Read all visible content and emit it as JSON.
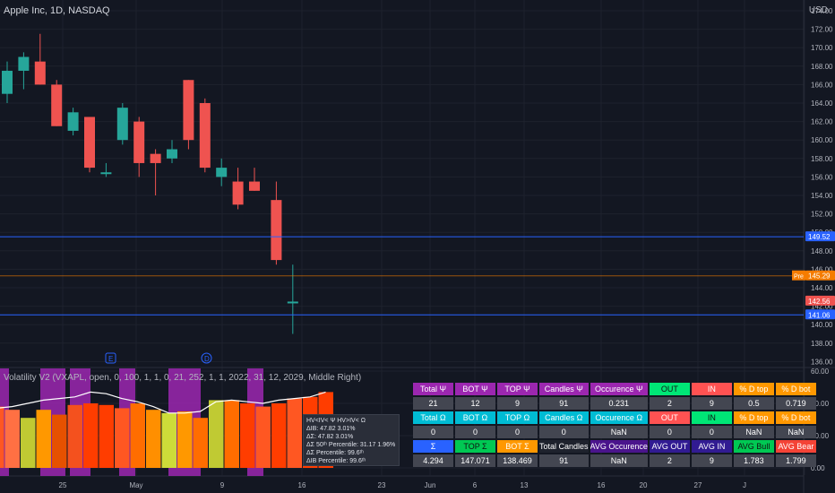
{
  "header": {
    "symbol_title": "Apple Inc, 1D, NASDAQ",
    "currency": "USD"
  },
  "price_axis": [
    "174.00",
    "172.00",
    "170.00",
    "168.00",
    "166.00",
    "164.00",
    "162.00",
    "160.00",
    "158.00",
    "156.00",
    "154.00",
    "152.00",
    "150.00",
    "148.00",
    "146.00",
    "144.00",
    "142.00",
    "140.00",
    "138.00",
    "136.00"
  ],
  "price_tags": {
    "line_high": "149.52",
    "pre_label": "Pre",
    "pre_price": "145.29",
    "last_price": "142.56",
    "line_low": "141.06"
  },
  "indicator_axis": [
    "60.00",
    "40.00",
    "20.00",
    "0.00"
  ],
  "time_axis": [
    "25",
    "May",
    "9",
    "16",
    "23",
    "Jun",
    "6",
    "13",
    "16",
    "20",
    "27",
    "J"
  ],
  "event_markers": [
    "E",
    "D"
  ],
  "indicator": {
    "title": "Volatility V2 (VXAPL, open, 0, 100, 1, 1, 0, 21, 252, 1, 1, 2022, 31, 12, 2029, Middle Right)"
  },
  "tooltip": [
    "HV<IV< Ψ  HV>IV< Ω",
    "ΔIB: 47.82  3.01%",
    "ΔΣ: 47.82  3.01%",
    "ΔΣ 50ᵗʰ Percentile: 31.17  1.96%",
    "ΔΣ Percentile: 99.6ᵗʰ",
    "ΔIB Percentile: 99.6ᵗʰ"
  ],
  "stats_table": {
    "rows": [
      [
        "Total Ψ",
        "BOT Ψ",
        "TOP Ψ",
        "Candles Ψ",
        "Occurence Ψ",
        "OUT",
        "IN",
        "% D top",
        "% D bot"
      ],
      [
        "21",
        "12",
        "9",
        "91",
        "0.231",
        "2",
        "9",
        "0.5",
        "0.719"
      ],
      [
        "Total Ω",
        "BOT Ω",
        "TOP Ω",
        "Candles Ω",
        "Occurence Ω",
        "OUT",
        "IN",
        "% D top",
        "% D bot"
      ],
      [
        "0",
        "0",
        "0",
        "0",
        "NaN",
        "0",
        "0",
        "NaN",
        "NaN"
      ],
      [
        "Σ",
        "TOP Σ",
        "BOT Σ",
        "Total Candles",
        "AVG Occurence",
        "AVG OUT",
        "AVG IN",
        "AVG Bull",
        "AVG Bear"
      ],
      [
        "4.294",
        "147.071",
        "138.469",
        "91",
        "NaN",
        "2",
        "9",
        "1.783",
        "1.799"
      ]
    ]
  },
  "chart_data": {
    "type": "candlestick",
    "title": "Apple Inc, 1D, NASDAQ",
    "candles": [
      {
        "o": 165.0,
        "h": 168.5,
        "l": 164.0,
        "c": 167.5
      },
      {
        "o": 167.5,
        "h": 169.5,
        "l": 165.5,
        "c": 169.0
      },
      {
        "o": 168.5,
        "h": 171.5,
        "l": 166.0,
        "c": 166.0
      },
      {
        "o": 166.0,
        "h": 166.5,
        "l": 161.5,
        "c": 161.5
      },
      {
        "o": 161.0,
        "h": 163.5,
        "l": 160.5,
        "c": 163.0
      },
      {
        "o": 162.5,
        "h": 162.5,
        "l": 156.5,
        "c": 157.0
      },
      {
        "o": 156.5,
        "h": 157.5,
        "l": 156.0,
        "c": 156.5
      },
      {
        "o": 160.0,
        "h": 164.0,
        "l": 159.5,
        "c": 163.5
      },
      {
        "o": 162.0,
        "h": 162.5,
        "l": 156.0,
        "c": 157.5
      },
      {
        "o": 158.5,
        "h": 159.0,
        "l": 154.0,
        "c": 157.5
      },
      {
        "o": 158.0,
        "h": 160.0,
        "l": 157.5,
        "c": 159.0
      },
      {
        "o": 166.5,
        "h": 166.5,
        "l": 159.0,
        "c": 160.0
      },
      {
        "o": 164.0,
        "h": 164.5,
        "l": 156.5,
        "c": 157.0
      },
      {
        "o": 156.0,
        "h": 158.0,
        "l": 155.0,
        "c": 157.0
      },
      {
        "o": 155.5,
        "h": 157.0,
        "l": 152.5,
        "c": 153.0
      },
      {
        "o": 155.5,
        "h": 157.0,
        "l": 154.5,
        "c": 154.5
      },
      {
        "o": 153.5,
        "h": 155.5,
        "l": 146.5,
        "c": 147.0
      },
      {
        "o": 142.5,
        "h": 146.5,
        "l": 139.0,
        "c": 142.5
      }
    ],
    "hlines": [
      149.52,
      145.29,
      141.06
    ],
    "ylim": [
      135.0,
      175.5
    ],
    "volatility_bars": [
      38,
      36,
      31,
      36,
      33,
      39,
      40,
      39,
      37,
      40,
      36,
      34,
      35,
      31,
      42,
      42,
      40,
      38,
      40,
      43,
      44,
      47
    ],
    "volatility_line": [
      37,
      38,
      40,
      42,
      43,
      44,
      47,
      46,
      43,
      41,
      38,
      34,
      34,
      35,
      41,
      42,
      41,
      40,
      42,
      43,
      44,
      47
    ]
  }
}
